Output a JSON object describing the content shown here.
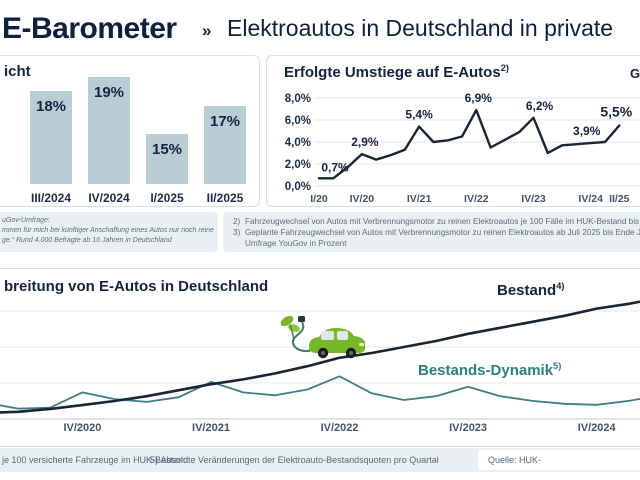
{
  "header": {
    "brand": "E-Barometer",
    "separator": "»",
    "subtitle": "Elektroautos in Deutschland in private"
  },
  "panels": {
    "kaufabsicht": {
      "title_fragment": "icht"
    },
    "umstiege": {
      "title": "Erfolgte Umstiege auf E-Autos",
      "title_sup": "2)",
      "partial_glyph": "G"
    },
    "bottom": {
      "title_fragment": "breitung von E-Autos in Deutschland",
      "bestand_label": "Bestand",
      "bestand_sup": "4)",
      "dynamik_label": "Bestands-Dynamik",
      "dynamik_sup": "5)"
    }
  },
  "footnotes": {
    "left_lines": [
      "uGov-Umfrage:",
      "mmen für mich bei künftiger Anschaffung eines Autos nur noch reine",
      "ge.“ Rund 4.000 Befragte ab 16 Jahren in Deutschland"
    ],
    "right_items": [
      {
        "num": "2)",
        "text": "Fahrzeugwechsel von Autos mit Verbrennungsmotor zu reinen Elektroautos je 100 Fälle im HUK-Bestand bis"
      },
      {
        "num": "3)",
        "text": "Geplante Fahrzeugwechsel von Autos mit Verbrennungsmotor zu reinen Elektroautos ab Juli 2025 bis Ende J",
        "text2": "Umfrage YouGov in Prozent"
      }
    ]
  },
  "footer": {
    "left": "je 100 versicherte Fahrzeuge im HUK-Bestand",
    "middle_num": "5)",
    "middle": "Absolute Veränderungen der Elektroauto-Bestandsquoten pro Quartal",
    "source": "Quelle: HUK-"
  },
  "colors": {
    "navy": "#14233f",
    "bar_fill": "#b9cdd4",
    "line_dark": "#1b2435",
    "teal": "#2e7e86",
    "band_bg": "#e9eff2",
    "grid": "#e3e6e8",
    "footnote_text": "#5c6d7e",
    "car_green": "#76b82a"
  },
  "chart_data": [
    {
      "type": "bar",
      "title_visible": "icht",
      "categories": [
        "III/2024",
        "IV/2024",
        "I/2025",
        "II/2025"
      ],
      "values": [
        18,
        19,
        15,
        17
      ],
      "unit": "%",
      "axis_zoomed": true
    },
    {
      "type": "line",
      "title": "Erfolgte Umstiege auf E-Autos 2)",
      "x": [
        "I/20",
        "II/20",
        "III/20",
        "IV/20",
        "I/21",
        "II/21",
        "III/21",
        "IV/21",
        "I/22",
        "II/22",
        "III/22",
        "IV/22",
        "I/23",
        "II/23",
        "III/23",
        "IV/23",
        "I/24",
        "II/24",
        "III/24",
        "IV/24",
        "I/25",
        "II/25"
      ],
      "values": [
        0.7,
        0.7,
        1.7,
        2.9,
        2.4,
        2.8,
        3.3,
        5.4,
        4.0,
        4.15,
        4.5,
        6.9,
        3.5,
        4.2,
        4.9,
        6.2,
        3.0,
        3.7,
        3.8,
        3.9,
        4.0,
        5.5
      ],
      "ylim": [
        0,
        8
      ],
      "yticks": [
        "0,0%",
        "2,0%",
        "4,0%",
        "6,0%",
        "8,0%"
      ],
      "xticks": [
        {
          "index": 0,
          "label": "I/20"
        },
        {
          "index": 3,
          "label": "IV/20"
        },
        {
          "index": 7,
          "label": "IV/21"
        },
        {
          "index": 11,
          "label": "IV/22"
        },
        {
          "index": 15,
          "label": "IV/23"
        },
        {
          "index": 19,
          "label": "IV/24"
        },
        {
          "index": 21,
          "label": "II/25"
        }
      ],
      "annotations": [
        {
          "index": 0,
          "label": "0,7%"
        },
        {
          "index": 3,
          "label": "2,9%"
        },
        {
          "index": 7,
          "label": "5,4%"
        },
        {
          "index": 11,
          "label": "6,9%"
        },
        {
          "index": 15,
          "label": "6,2%"
        },
        {
          "index": 19,
          "label": "3,9%"
        },
        {
          "index": 21,
          "label": "5,5%",
          "bold": true
        }
      ]
    },
    {
      "type": "line",
      "title_visible": "breitung von E-Autos in Deutschland",
      "x": [
        "I/2020",
        "II/2020",
        "III/2020",
        "IV/2020",
        "I/2021",
        "II/2021",
        "III/2021",
        "IV/2021",
        "I/2022",
        "II/2022",
        "III/2022",
        "IV/2022",
        "I/2023",
        "II/2023",
        "III/2023",
        "IV/2023",
        "I/2024",
        "II/2024",
        "III/2024",
        "IV/2024",
        "I/2025",
        "II/2025"
      ],
      "series": [
        {
          "name": "Bestand 4)",
          "values": [
            0.25,
            0.3,
            0.42,
            0.58,
            0.75,
            0.95,
            1.2,
            1.45,
            1.65,
            1.9,
            2.2,
            2.55,
            2.75,
            3.0,
            3.25,
            3.55,
            3.8,
            4.05,
            4.3,
            4.6,
            4.8,
            5.05
          ]
        },
        {
          "name": "Bestands-Dynamik 5)",
          "values": [
            0.17,
            0.11,
            0.12,
            0.28,
            0.21,
            0.18,
            0.23,
            0.39,
            0.28,
            0.25,
            0.31,
            0.45,
            0.27,
            0.2,
            0.24,
            0.34,
            0.24,
            0.19,
            0.16,
            0.15,
            0.19,
            0.25
          ]
        }
      ],
      "xticks": [
        {
          "index": 3,
          "label": "IV/2020"
        },
        {
          "index": 7,
          "label": "IV/2021"
        },
        {
          "index": 11,
          "label": "IV/2022"
        },
        {
          "index": 15,
          "label": "IV/2023"
        },
        {
          "index": 19,
          "label": "IV/2024"
        }
      ],
      "grid": true,
      "legend_position": "inline-labels"
    }
  ]
}
